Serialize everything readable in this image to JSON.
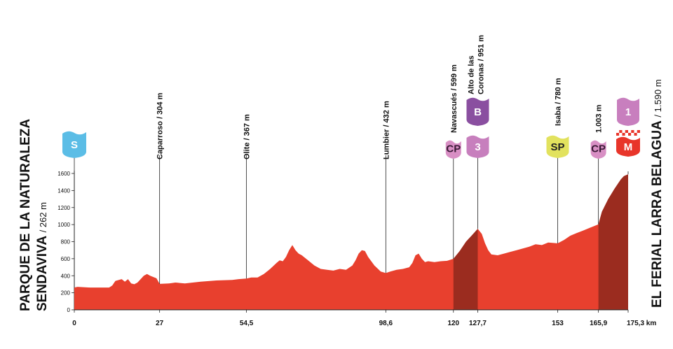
{
  "chart_data": {
    "type": "area",
    "x_unit": "km",
    "xlim": [
      0,
      175.3
    ],
    "ylim": [
      0,
      1600
    ],
    "y_ticks": [
      0,
      200,
      400,
      600,
      800,
      1000,
      1200,
      1400,
      1600
    ],
    "x_ticks": [
      "0",
      "27",
      "54,5",
      "98,6",
      "120",
      "127,7",
      "153",
      "165,9",
      "175,3 km"
    ],
    "x_tick_values": [
      0,
      27,
      54.5,
      98.6,
      120,
      127.7,
      153,
      165.9,
      175.3
    ],
    "start": {
      "name": "PARQUE DE LA NATURALEZA",
      "name2": "SENDAVIVA",
      "alt": "/ 262 m",
      "badge": "S",
      "badge_color": "#5bbde6"
    },
    "finish": {
      "name": "EL FERIAL LARRA BELAGUA",
      "alt": "/ 1.590 m",
      "badge": "M",
      "badge_color": "#e8352a"
    },
    "waypoints": [
      {
        "km": 27,
        "label": "Caparroso / 304 m"
      },
      {
        "km": 54.5,
        "label": "Olite / 367 m"
      },
      {
        "km": 98.6,
        "label": "Lumbier / 432 m"
      },
      {
        "km": 120,
        "label": "Navascués / 599 m",
        "badge": "CP"
      },
      {
        "km": 127.7,
        "label": "Alto de las",
        "label2": "Coronas / 951 m",
        "badge": "3",
        "badge_top": "B"
      },
      {
        "km": 153,
        "label": "Isaba / 780 m",
        "badge": "SP"
      },
      {
        "km": 165.9,
        "label": "1.003 m",
        "badge": "CP"
      },
      {
        "km": 175.3,
        "badge": "M",
        "badge_top": "1"
      }
    ],
    "climb_segments": [
      [
        120,
        127.7
      ],
      [
        165.9,
        175.3
      ]
    ],
    "profile": [
      [
        0,
        262
      ],
      [
        1,
        270
      ],
      [
        5,
        262
      ],
      [
        11,
        262
      ],
      [
        12,
        285
      ],
      [
        13,
        340
      ],
      [
        15,
        360
      ],
      [
        16,
        330
      ],
      [
        17,
        360
      ],
      [
        18,
        310
      ],
      [
        19,
        300
      ],
      [
        20,
        320
      ],
      [
        22,
        400
      ],
      [
        23,
        420
      ],
      [
        24,
        400
      ],
      [
        26,
        370
      ],
      [
        27,
        304
      ],
      [
        30,
        310
      ],
      [
        32,
        320
      ],
      [
        35,
        310
      ],
      [
        40,
        330
      ],
      [
        45,
        345
      ],
      [
        50,
        350
      ],
      [
        52,
        360
      ],
      [
        54.5,
        367
      ],
      [
        56,
        380
      ],
      [
        58,
        380
      ],
      [
        60,
        420
      ],
      [
        62,
        480
      ],
      [
        64,
        550
      ],
      [
        65,
        580
      ],
      [
        66,
        570
      ],
      [
        67,
        620
      ],
      [
        68,
        700
      ],
      [
        69,
        760
      ],
      [
        70,
        700
      ],
      [
        71,
        660
      ],
      [
        72,
        640
      ],
      [
        74,
        580
      ],
      [
        76,
        520
      ],
      [
        78,
        480
      ],
      [
        80,
        470
      ],
      [
        82,
        460
      ],
      [
        84,
        480
      ],
      [
        86,
        470
      ],
      [
        88,
        520
      ],
      [
        89,
        580
      ],
      [
        90,
        660
      ],
      [
        91,
        700
      ],
      [
        92,
        690
      ],
      [
        93,
        620
      ],
      [
        95,
        520
      ],
      [
        97,
        450
      ],
      [
        98.6,
        432
      ],
      [
        100,
        450
      ],
      [
        102,
        470
      ],
      [
        104,
        480
      ],
      [
        106,
        500
      ],
      [
        107,
        550
      ],
      [
        108,
        640
      ],
      [
        109,
        660
      ],
      [
        110,
        600
      ],
      [
        111,
        560
      ],
      [
        112,
        570
      ],
      [
        114,
        560
      ],
      [
        116,
        570
      ],
      [
        118,
        575
      ],
      [
        120,
        599
      ],
      [
        122,
        690
      ],
      [
        124,
        800
      ],
      [
        126,
        880
      ],
      [
        127.7,
        951
      ],
      [
        129,
        890
      ],
      [
        130,
        780
      ],
      [
        131,
        700
      ],
      [
        132,
        650
      ],
      [
        134,
        640
      ],
      [
        136,
        660
      ],
      [
        138,
        680
      ],
      [
        140,
        700
      ],
      [
        142,
        720
      ],
      [
        144,
        740
      ],
      [
        146,
        770
      ],
      [
        148,
        760
      ],
      [
        150,
        790
      ],
      [
        153,
        780
      ],
      [
        155,
        820
      ],
      [
        157,
        870
      ],
      [
        159,
        900
      ],
      [
        161,
        930
      ],
      [
        163,
        960
      ],
      [
        165.9,
        1003
      ],
      [
        167,
        1150
      ],
      [
        169,
        1300
      ],
      [
        171,
        1420
      ],
      [
        173,
        1530
      ],
      [
        174,
        1570
      ],
      [
        175.3,
        1590
      ]
    ]
  }
}
